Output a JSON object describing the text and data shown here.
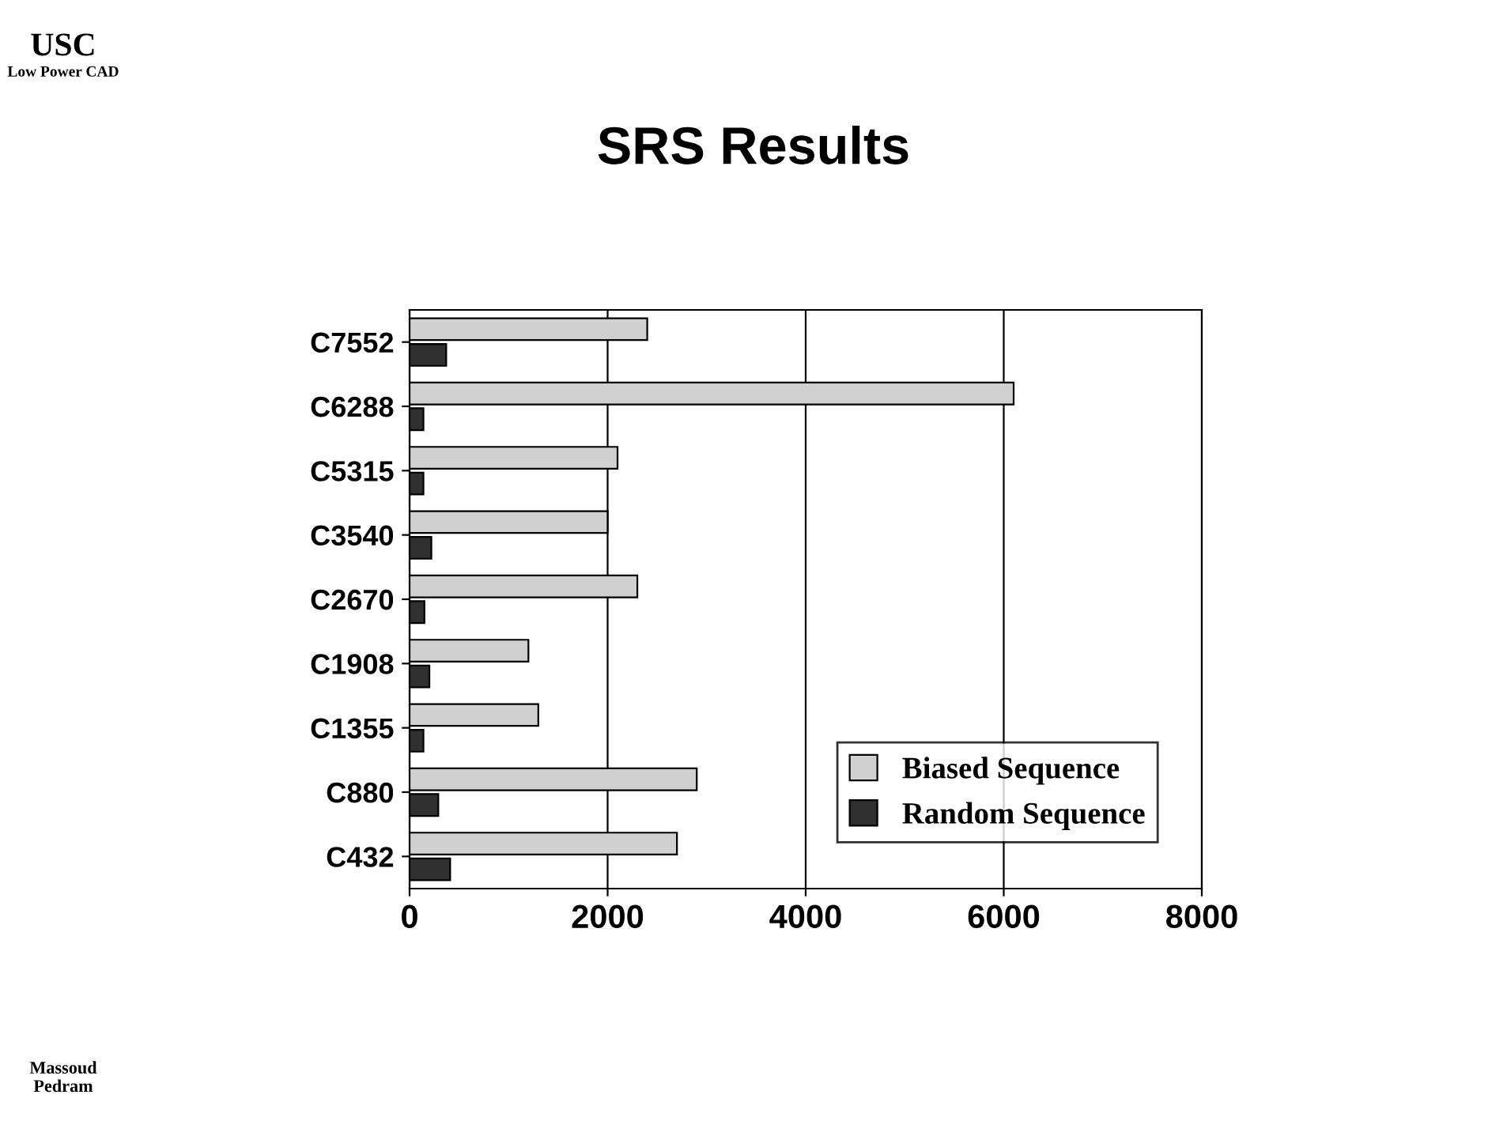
{
  "chart_data": {
    "type": "bar",
    "orientation": "horizontal",
    "title": "SRS Results",
    "annotations": [
      "USC",
      "Low Power CAD",
      "Massoud Pedram"
    ],
    "categories": [
      "C7552",
      "C6288",
      "C5315",
      "C3540",
      "C2670",
      "C1908",
      "C1355",
      "C880",
      "C432"
    ],
    "series": [
      {
        "name": "Biased Sequence",
        "color": "#d0d0d0",
        "values": [
          2400,
          6100,
          2100,
          2000,
          2300,
          1200,
          1300,
          2900,
          2700
        ]
      },
      {
        "name": "Random Sequence",
        "color": "#303030",
        "values": [
          370,
          140,
          140,
          220,
          150,
          200,
          140,
          290,
          410
        ]
      }
    ],
    "xlim": [
      0,
      8000
    ],
    "xticks": [
      0,
      2000,
      4000,
      6000,
      8000
    ],
    "grid": "x",
    "legend": "bottom right"
  }
}
